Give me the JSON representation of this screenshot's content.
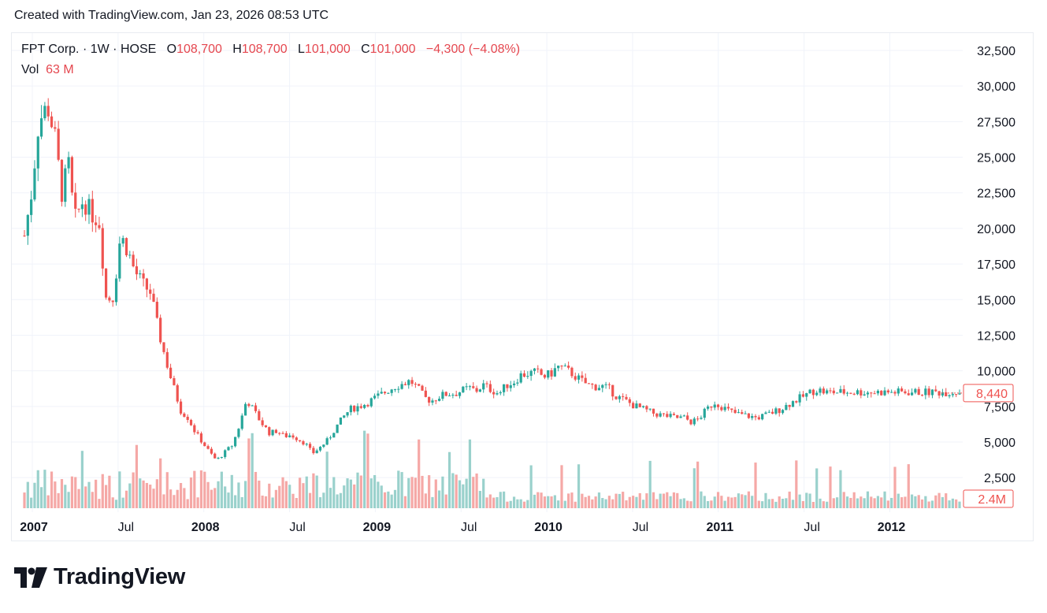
{
  "caption": "Created with TradingView.com, Jan 23, 2026 08:53 UTC",
  "legend": {
    "symbol": "FPT Corp. · 1W · HOSE",
    "o_label": "O",
    "open": "108,700",
    "h_label": "H",
    "high": "108,700",
    "l_label": "L",
    "low": "101,000",
    "c_label": "C",
    "close": "101,000",
    "change": "−4,300 (−4.08%)",
    "vol_label": "Vol",
    "vol_value": "63 M"
  },
  "colors": {
    "up": "#26a69a",
    "down": "#ef5350",
    "vol_up": "#9ad1cc",
    "vol_down": "#f5a8a6",
    "grid": "#f0f3fa",
    "text": "#131722"
  },
  "logo": {
    "text": "TradingView",
    "icon": "tradingview-logo-icon"
  },
  "chart_data": {
    "type": "candlestick",
    "title": "FPT Corp. · 1W · HOSE",
    "y_ticks": [
      "32,500",
      "30,000",
      "27,500",
      "25,000",
      "22,500",
      "20,000",
      "17,500",
      "15,000",
      "12,500",
      "10,000",
      "7,500",
      "5,000",
      "2,500"
    ],
    "y_tick_values": [
      32500,
      30000,
      27500,
      25000,
      22500,
      20000,
      17500,
      15000,
      12500,
      10000,
      7500,
      5000,
      2500
    ],
    "ylim": [
      0,
      33800
    ],
    "x_ticks": [
      {
        "label": "2007",
        "bold": true,
        "t": 0
      },
      {
        "label": "Jul",
        "bold": false,
        "t": 0.5
      },
      {
        "label": "2008",
        "bold": true,
        "t": 1
      },
      {
        "label": "Jul",
        "bold": false,
        "t": 1.5
      },
      {
        "label": "2009",
        "bold": true,
        "t": 2
      },
      {
        "label": "Jul",
        "bold": false,
        "t": 2.5
      },
      {
        "label": "2010",
        "bold": true,
        "t": 3
      },
      {
        "label": "Jul",
        "bold": false,
        "t": 3.5
      },
      {
        "label": "2011",
        "bold": true,
        "t": 4
      },
      {
        "label": "Jul",
        "bold": false,
        "t": 4.5
      },
      {
        "label": "2012",
        "bold": true,
        "t": 5
      }
    ],
    "last_price_label": "8,440",
    "last_volume_label": "2.4M",
    "close_path": [
      [
        0,
        19500
      ],
      [
        0.04,
        22500
      ],
      [
        0.08,
        27500
      ],
      [
        0.13,
        28600
      ],
      [
        0.17,
        26500
      ],
      [
        0.21,
        22500
      ],
      [
        0.25,
        24500
      ],
      [
        0.28,
        20500
      ],
      [
        0.33,
        22000
      ],
      [
        0.38,
        21000
      ],
      [
        0.42,
        20500
      ],
      [
        0.46,
        15000
      ],
      [
        0.5,
        15200
      ],
      [
        0.54,
        19500
      ],
      [
        0.58,
        18500
      ],
      [
        0.62,
        17000
      ],
      [
        0.67,
        16000
      ],
      [
        0.71,
        15500
      ],
      [
        0.75,
        13000
      ],
      [
        0.79,
        11000
      ],
      [
        0.83,
        9200
      ],
      [
        0.88,
        7200
      ],
      [
        0.92,
        6700
      ],
      [
        0.96,
        5700
      ],
      [
        1.0,
        5000
      ],
      [
        1.04,
        4300
      ],
      [
        1.08,
        3700
      ],
      [
        1.12,
        4200
      ],
      [
        1.17,
        4800
      ],
      [
        1.21,
        6200
      ],
      [
        1.25,
        8000
      ],
      [
        1.29,
        7200
      ],
      [
        1.33,
        6400
      ],
      [
        1.38,
        5600
      ],
      [
        1.42,
        5800
      ],
      [
        1.46,
        5400
      ],
      [
        1.5,
        5500
      ],
      [
        1.54,
        5200
      ],
      [
        1.58,
        4900
      ],
      [
        1.62,
        4200
      ],
      [
        1.67,
        4700
      ],
      [
        1.71,
        5200
      ],
      [
        1.75,
        6000
      ],
      [
        1.79,
        6700
      ],
      [
        1.83,
        7300
      ],
      [
        1.88,
        7500
      ],
      [
        1.92,
        7700
      ],
      [
        1.96,
        8000
      ],
      [
        2.0,
        8300
      ],
      [
        2.04,
        8600
      ],
      [
        2.08,
        8900
      ],
      [
        2.13,
        9100
      ],
      [
        2.17,
        9300
      ],
      [
        2.21,
        8800
      ],
      [
        2.25,
        8100
      ],
      [
        2.29,
        7900
      ],
      [
        2.33,
        8200
      ],
      [
        2.38,
        8400
      ],
      [
        2.42,
        8400
      ],
      [
        2.46,
        8600
      ],
      [
        2.5,
        8800
      ],
      [
        2.54,
        8600
      ],
      [
        2.58,
        9000
      ],
      [
        2.62,
        8700
      ],
      [
        2.67,
        8400
      ],
      [
        2.71,
        9000
      ],
      [
        2.75,
        9200
      ],
      [
        2.79,
        9700
      ],
      [
        2.83,
        9800
      ],
      [
        2.88,
        9900
      ],
      [
        2.92,
        9600
      ],
      [
        2.96,
        9800
      ],
      [
        3.0,
        10300
      ],
      [
        3.04,
        10100
      ],
      [
        3.08,
        9800
      ],
      [
        3.12,
        9400
      ],
      [
        3.17,
        9000
      ],
      [
        3.21,
        8900
      ],
      [
        3.25,
        8900
      ],
      [
        3.29,
        8700
      ],
      [
        3.33,
        8200
      ],
      [
        3.38,
        7900
      ],
      [
        3.42,
        7600
      ],
      [
        3.46,
        7400
      ],
      [
        3.5,
        7200
      ],
      [
        3.54,
        7000
      ],
      [
        3.58,
        6900
      ],
      [
        3.62,
        6800
      ],
      [
        3.67,
        6700
      ],
      [
        3.71,
        6700
      ],
      [
        3.75,
        6400
      ],
      [
        3.79,
        6600
      ],
      [
        3.83,
        7200
      ],
      [
        3.88,
        7800
      ],
      [
        3.92,
        7500
      ],
      [
        3.96,
        7200
      ],
      [
        4.0,
        7000
      ],
      [
        4.04,
        6900
      ],
      [
        4.08,
        6800
      ],
      [
        4.12,
        6700
      ],
      [
        4.17,
        6900
      ],
      [
        4.21,
        7100
      ],
      [
        4.25,
        7300
      ],
      [
        4.29,
        7600
      ],
      [
        4.33,
        7900
      ],
      [
        4.38,
        8200
      ],
      [
        4.42,
        8500
      ],
      [
        4.46,
        8700
      ],
      [
        4.5,
        8500
      ]
    ]
  }
}
